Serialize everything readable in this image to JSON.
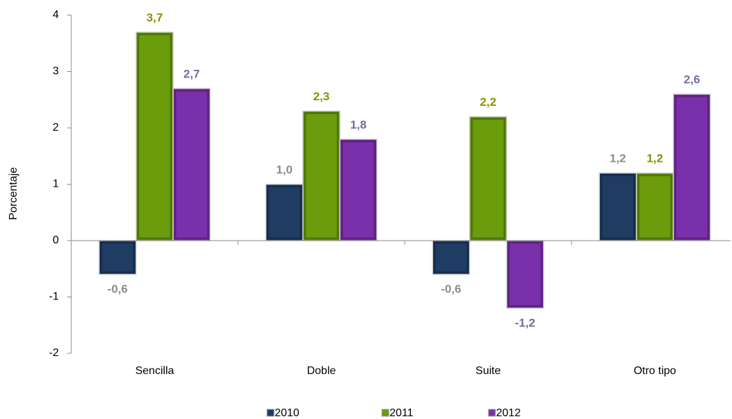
{
  "chart_data": {
    "type": "bar",
    "y_label": "Porcentaje",
    "categories": [
      "Sencilla",
      "Doble",
      "Suite",
      "Otro tipo"
    ],
    "series": [
      {
        "name": "2010",
        "color": "#1f3d63",
        "label_color": "#8c8c8c",
        "values": [
          -0.6,
          1.0,
          -0.6,
          1.2
        ],
        "value_labels": [
          "-0,6",
          "1,0",
          "-0,6",
          "1,2"
        ]
      },
      {
        "name": "2011",
        "color": "#6a9c0c",
        "label_color": "#8f8f00",
        "values": [
          3.7,
          2.3,
          2.2,
          1.2
        ],
        "value_labels": [
          "3,7",
          "2,3",
          "2,2",
          "1,2"
        ]
      },
      {
        "name": "2012",
        "color": "#7b30ab",
        "label_color": "#6f6fa6",
        "values": [
          2.7,
          1.8,
          -1.2,
          2.6
        ],
        "value_labels": [
          "2,7",
          "1,8",
          "-1,2",
          "2,6"
        ]
      }
    ],
    "ylim": [
      -2,
      4
    ],
    "yticks": [
      -2,
      -1,
      0,
      1,
      2,
      3,
      4
    ],
    "legend": "bottom"
  }
}
